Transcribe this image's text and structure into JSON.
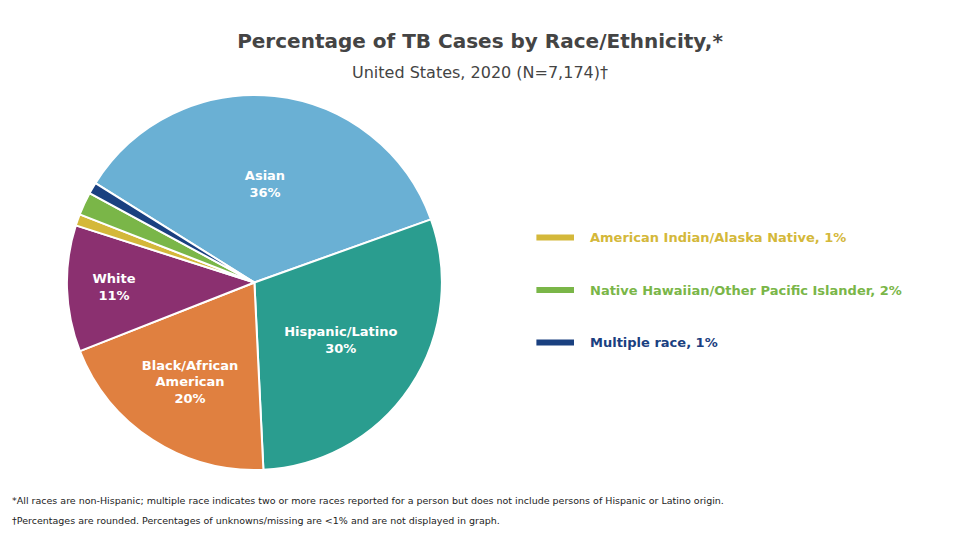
{
  "chart_data": {
    "type": "pie",
    "title": "Percentage of TB Cases by Race/Ethnicity,*",
    "subtitle": "United States, 2020 (N=7,174)†",
    "categories": [
      "Asian",
      "Hispanic/Latino",
      "Black/African\nAmerican",
      "White",
      "American Indian/Alaska Native",
      "Native Hawaiian/Other Pacific Islander",
      "Multiple race"
    ],
    "values": [
      36,
      30,
      20,
      11,
      1,
      2,
      1
    ],
    "colors": [
      "#6ab0d4",
      "#2a9d8f",
      "#e08040",
      "#8b3070",
      "#d4b83a",
      "#7ab648",
      "#1a4080"
    ],
    "data_labels": true,
    "value_labels": [
      "Asian\n36%",
      "Hispanic/Latino\n30%",
      "Black/African\nAmerican\n20%",
      "White\n11%",
      null,
      null,
      null
    ],
    "legend": "right",
    "annotations": [
      {
        "text": "American Indian/Alaska Native, 1%",
        "color": "#d4b83a"
      },
      {
        "text": "Native Hawaiian/Other Pacific Islander, 2%",
        "color": "#7ab648"
      },
      {
        "text": "Multiple race, 1%",
        "color": "#1a4080"
      },
      {
        "text": "*All races are non-Hispanic; multiple race indicates two or more races reported for a person but does not include persons of Hispanic or Latino origin."
      },
      {
        "text": "†Percentages are rounded. Percentages of unknowns/missing are <1% and are not displayed in graph."
      }
    ]
  }
}
